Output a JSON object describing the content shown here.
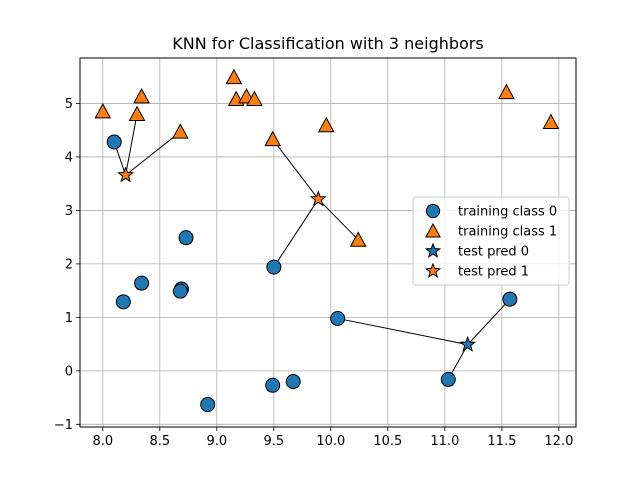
{
  "chart_data": {
    "type": "scatter",
    "title": "KNN for Classification with 3 neighbors",
    "xlabel": "",
    "ylabel": "",
    "xlim": [
      7.8,
      12.15
    ],
    "ylim": [
      -1.05,
      5.85
    ],
    "grid": true,
    "xticks": [
      8.0,
      8.5,
      9.0,
      9.5,
      10.0,
      10.5,
      11.0,
      11.5,
      12.0
    ],
    "xtick_labels": [
      "8.0",
      "8.5",
      "9.0",
      "9.5",
      "10.0",
      "10.5",
      "11.0",
      "11.5",
      "12.0"
    ],
    "yticks": [
      -1,
      0,
      1,
      2,
      3,
      4,
      5
    ],
    "ytick_labels": [
      "−1",
      "0",
      "1",
      "2",
      "3",
      "4",
      "5"
    ],
    "colors": {
      "class0": "#1f77b4",
      "class1": "#ff7f0e"
    },
    "legend_position": "center-right",
    "legend": [
      {
        "label": "training class 0",
        "marker": "circle",
        "color": "#1f77b4"
      },
      {
        "label": "training class 1",
        "marker": "triangle",
        "color": "#ff7f0e"
      },
      {
        "label": "test pred 0",
        "marker": "star",
        "color": "#1f77b4"
      },
      {
        "label": "test pred 1",
        "marker": "star",
        "color": "#ff7f0e"
      }
    ],
    "series": [
      {
        "name": "training class 0",
        "marker": "circle",
        "points": [
          [
            8.1,
            4.28
          ],
          [
            8.73,
            2.49
          ],
          [
            8.34,
            1.64
          ],
          [
            8.69,
            1.53
          ],
          [
            8.68,
            1.49
          ],
          [
            8.18,
            1.29
          ],
          [
            9.5,
            1.94
          ],
          [
            10.06,
            0.98
          ],
          [
            11.57,
            1.34
          ],
          [
            11.03,
            -0.16
          ],
          [
            9.67,
            -0.2
          ],
          [
            9.49,
            -0.27
          ],
          [
            8.92,
            -0.63
          ]
        ]
      },
      {
        "name": "training class 1",
        "marker": "triangle",
        "points": [
          [
            8.0,
            4.85
          ],
          [
            8.34,
            5.13
          ],
          [
            8.3,
            4.8
          ],
          [
            8.68,
            4.47
          ],
          [
            9.15,
            5.49
          ],
          [
            9.17,
            5.08
          ],
          [
            9.26,
            5.13
          ],
          [
            9.33,
            5.08
          ],
          [
            9.49,
            4.33
          ],
          [
            9.96,
            4.59
          ],
          [
            10.24,
            2.45
          ],
          [
            11.54,
            5.21
          ],
          [
            11.93,
            4.65
          ]
        ]
      },
      {
        "name": "test pred 0",
        "marker": "star",
        "points": [
          [
            11.2,
            0.49
          ]
        ]
      },
      {
        "name": "test pred 1",
        "marker": "star",
        "points": [
          [
            8.2,
            3.66
          ],
          [
            9.89,
            3.21
          ]
        ]
      }
    ],
    "neighbor_links": [
      {
        "test": [
          8.2,
          3.66
        ],
        "neighbors": [
          [
            8.1,
            4.28
          ],
          [
            8.3,
            4.8
          ],
          [
            8.68,
            4.47
          ]
        ]
      },
      {
        "test": [
          9.89,
          3.21
        ],
        "neighbors": [
          [
            9.49,
            4.33
          ],
          [
            9.5,
            1.94
          ],
          [
            10.24,
            2.45
          ]
        ]
      },
      {
        "test": [
          11.2,
          0.49
        ],
        "neighbors": [
          [
            10.06,
            0.98
          ],
          [
            11.03,
            -0.16
          ],
          [
            11.57,
            1.34
          ]
        ]
      }
    ]
  }
}
